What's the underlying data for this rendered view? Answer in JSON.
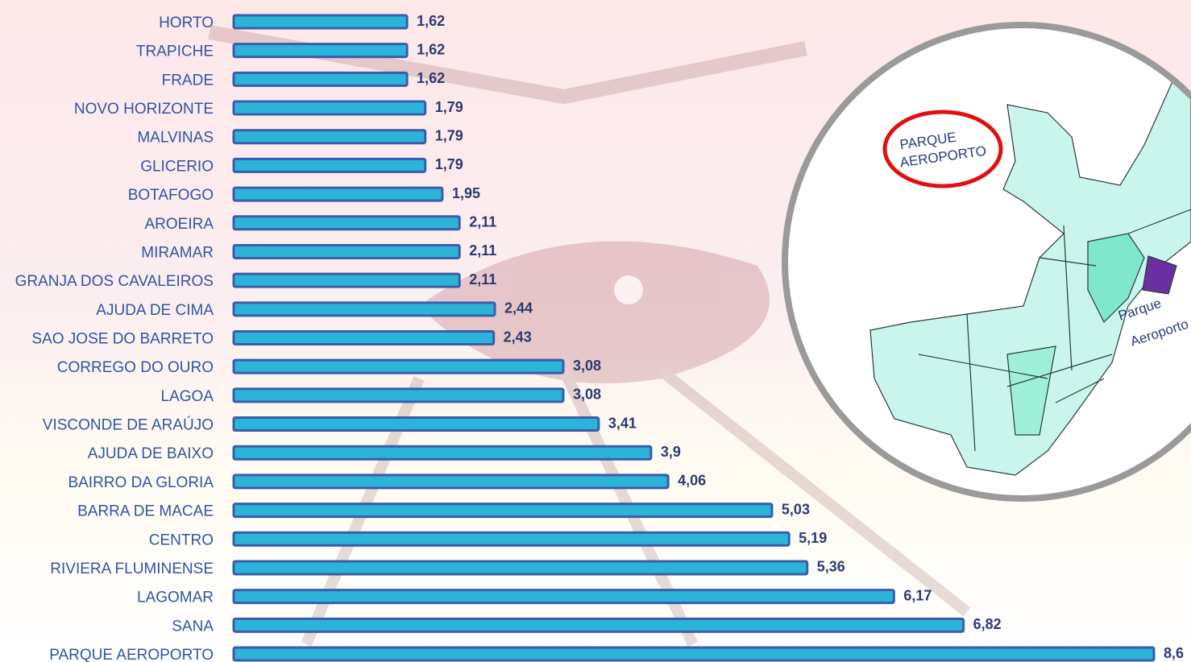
{
  "chart_data": {
    "type": "bar",
    "orientation": "horizontal",
    "categories": [
      "HORTO",
      "TRAPICHE",
      "FRADE",
      "NOVO HORIZONTE",
      "MALVINAS",
      "GLICERIO",
      "BOTAFOGO",
      "AROEIRA",
      "MIRAMAR",
      "GRANJA DOS CAVALEIROS",
      "AJUDA DE CIMA",
      "SAO JOSE DO BARRETO",
      "CORREGO DO OURO",
      "LAGOA",
      "VISCONDE DE ARAÚJO",
      "AJUDA DE BAIXO",
      "BAIRRO DA GLORIA",
      "BARRA DE MACAE",
      "CENTRO",
      "RIVIERA FLUMINENSE",
      "LAGOMAR",
      "SANA",
      "PARQUE AEROPORTO"
    ],
    "values": [
      1.62,
      1.62,
      1.62,
      1.79,
      1.79,
      1.79,
      1.95,
      2.11,
      2.11,
      2.11,
      2.44,
      2.43,
      3.08,
      3.08,
      3.41,
      3.9,
      4.06,
      5.03,
      5.19,
      5.36,
      6.17,
      6.82,
      8.6
    ],
    "value_labels": [
      "1,62",
      "1,62",
      "1,62",
      "1,79",
      "1,79",
      "1,79",
      "1,95",
      "2,11",
      "2,11",
      "2,11",
      "2,44",
      "2,43",
      "3,08",
      "3,08",
      "3,41",
      "3,9",
      "4,06",
      "5,03",
      "5,19",
      "5,36",
      "6,17",
      "6,82",
      "8,6"
    ],
    "color": "#2bb4d8",
    "edge_color": "#3a5cab"
  },
  "map": {
    "callout": [
      "PARQUE",
      "AEROPORTO"
    ],
    "region_label": [
      "Parque",
      "Aeroporto"
    ]
  }
}
